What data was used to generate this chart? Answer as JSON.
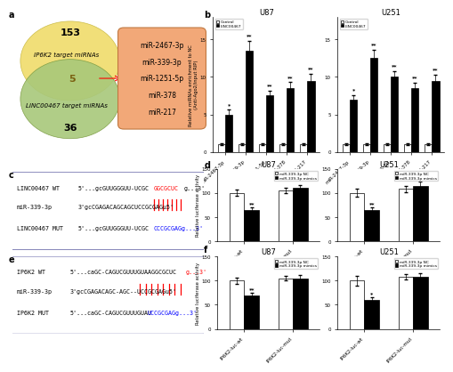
{
  "panel_a": {
    "yellow_color": "#F0DC6A",
    "green_color": "#A8C87A",
    "yellow_label": "IP6K2 target miRNAs",
    "green_label": "LINC00467 target miRNAs",
    "number_153": "153",
    "number_5": "5",
    "number_36": "36",
    "box_items": [
      "miR-2467-3p",
      "miR-339-3p",
      "miR-1251-5p",
      "miR-378",
      "miR-217"
    ],
    "box_color": "#F2A878"
  },
  "panel_b_u87": {
    "title": "U87",
    "categories": [
      "miR-2467-3p",
      "miR-339-3p",
      "miR-1251-5p",
      "miR-378",
      "miR-217"
    ],
    "control_values": [
      1.0,
      1.0,
      1.0,
      1.0,
      1.0
    ],
    "linc_values": [
      5.0,
      13.5,
      7.5,
      8.5,
      9.5
    ],
    "control_errors": [
      0.15,
      0.15,
      0.1,
      0.1,
      0.1
    ],
    "linc_errors": [
      0.6,
      1.3,
      0.7,
      0.8,
      0.9
    ],
    "ylabel": "Relative miRNAs enrichment to NC\n(Anti-Ago2/input RIP)",
    "ylim": [
      0,
      18
    ],
    "yticks": [
      0,
      5,
      10,
      15
    ],
    "control_color": "white",
    "linc_color": "black",
    "legend_control": "Control",
    "legend_linc": "LINC00467",
    "stars": [
      "*",
      "**",
      "**",
      "**",
      "**"
    ]
  },
  "panel_b_u251": {
    "title": "U251",
    "categories": [
      "miR-2467-3p",
      "miR-339-3p",
      "miR-1251-5p",
      "miR-378",
      "miR-217"
    ],
    "control_values": [
      1.0,
      1.0,
      1.0,
      1.0,
      1.0
    ],
    "linc_values": [
      7.0,
      12.5,
      10.0,
      8.5,
      9.5
    ],
    "control_errors": [
      0.15,
      0.15,
      0.1,
      0.1,
      0.1
    ],
    "linc_errors": [
      0.6,
      1.1,
      0.8,
      0.7,
      0.8
    ],
    "ylabel": "Relative miRNAs enrichment to NC\n(Anti-Ago2/input RIP)",
    "ylim": [
      0,
      18
    ],
    "yticks": [
      0,
      5,
      10,
      15
    ],
    "control_color": "white",
    "linc_color": "black",
    "legend_control": "Control",
    "legend_linc": "LINC00467",
    "stars": [
      "*",
      "**",
      "**",
      "**",
      "**"
    ]
  },
  "panel_d_u87": {
    "title": "U87",
    "categories": [
      "LINC-luc-wt",
      "LINC-luc-mut"
    ],
    "nc_values": [
      100,
      105
    ],
    "mimics_values": [
      65,
      110
    ],
    "nc_errors": [
      6,
      5
    ],
    "mimics_errors": [
      5,
      6
    ],
    "ylabel": "Relative luciferase activity",
    "ylim": [
      0,
      150
    ],
    "yticks": [
      0,
      50,
      100,
      150
    ],
    "nc_color": "white",
    "mimics_color": "black",
    "legend_nc": "miR-339-3p NC",
    "legend_mimics": "miR-339-3p mimics",
    "stars_nc": [
      "",
      ""
    ],
    "stars_mimics": [
      "**",
      ""
    ]
  },
  "panel_d_u251": {
    "title": "U251",
    "categories": [
      "LINC-luc-wt",
      "LINC-luc-mut"
    ],
    "nc_values": [
      100,
      108
    ],
    "mimics_values": [
      65,
      115
    ],
    "nc_errors": [
      8,
      6
    ],
    "mimics_errors": [
      5,
      8
    ],
    "ylabel": "Relative luciferase activity",
    "ylim": [
      0,
      150
    ],
    "yticks": [
      0,
      50,
      100,
      150
    ],
    "nc_color": "white",
    "mimics_color": "black",
    "legend_nc": "miR-339-3p NC",
    "legend_mimics": "miR-339-3p mimics",
    "stars_nc": [
      "",
      ""
    ],
    "stars_mimics": [
      "**",
      ""
    ]
  },
  "panel_f_u87": {
    "title": "U87",
    "categories": [
      "IP6K2-luc-wt",
      "IP6K2-luc-mut"
    ],
    "nc_values": [
      100,
      105
    ],
    "mimics_values": [
      70,
      105
    ],
    "nc_errors": [
      6,
      5
    ],
    "mimics_errors": [
      5,
      6
    ],
    "ylabel": "Relative luciferase activity",
    "ylim": [
      0,
      150
    ],
    "yticks": [
      0,
      50,
      100,
      150
    ],
    "nc_color": "white",
    "mimics_color": "black",
    "legend_nc": "miR-339-3p NC",
    "legend_mimics": "miR-339-3p mimics",
    "stars_nc": [
      "",
      ""
    ],
    "stars_mimics": [
      "**",
      ""
    ]
  },
  "panel_f_u251": {
    "title": "U251",
    "categories": [
      "IP6K2-luc-wt",
      "IP6K2-luc-mut"
    ],
    "nc_values": [
      100,
      108
    ],
    "mimics_values": [
      60,
      108
    ],
    "nc_errors": [
      10,
      5
    ],
    "mimics_errors": [
      5,
      8
    ],
    "ylabel": "Relative luciferase activity",
    "ylim": [
      0,
      150
    ],
    "yticks": [
      0,
      50,
      100,
      150
    ],
    "nc_color": "white",
    "mimics_color": "black",
    "legend_nc": "miR-339-3p NC",
    "legend_mimics": "miR-339-3p mimics",
    "stars_nc": [
      "",
      ""
    ],
    "stars_mimics": [
      "*",
      ""
    ]
  },
  "background_color": "#ffffff"
}
